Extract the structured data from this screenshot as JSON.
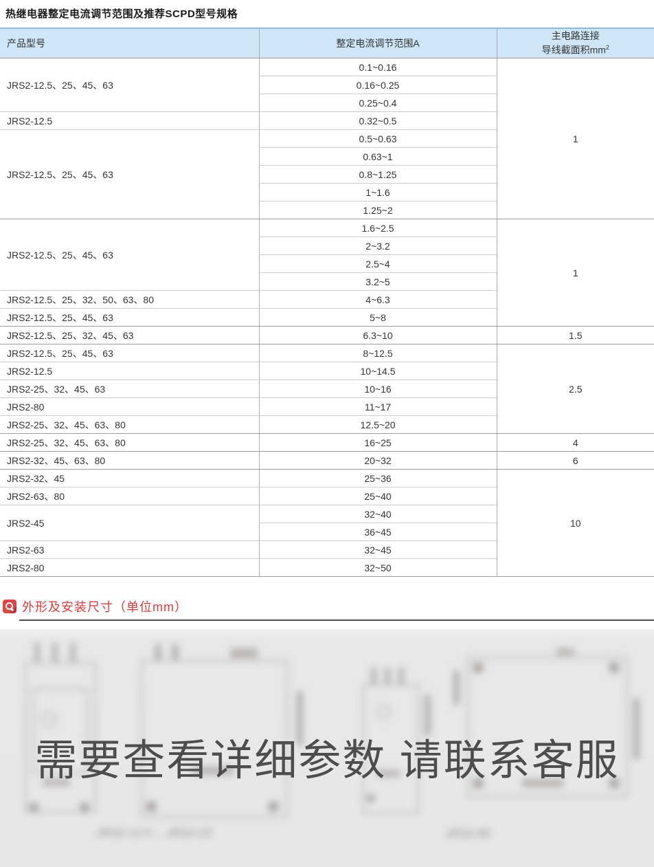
{
  "page": {
    "title": "热继电器整定电流调节范围及推荐SCPD型号规格"
  },
  "table": {
    "col1_header": "产品型号",
    "col2_header": "整定电流调节范围A",
    "col3_header_line1": "主电路连接",
    "col3_header_line2": "导线截面积mm",
    "col3_header_sup": "2",
    "rows": [
      {
        "range": "0.1~0.16",
        "model": "JRS2-12.5、25、45、63",
        "model_span": 3,
        "wire": "1",
        "wire_span": 9
      },
      {
        "range": "0.16~0.25"
      },
      {
        "range": "0.25~0.4"
      },
      {
        "range": "0.32~0.5",
        "model": "JRS2-12.5",
        "model_span": 1
      },
      {
        "range": "0.5~0.63",
        "model": "JRS2-12.5、25、45、63",
        "model_span": 5
      },
      {
        "range": "0.63~1"
      },
      {
        "range": "0.8~1.25"
      },
      {
        "range": "1~1.6"
      },
      {
        "range": "1.25~2",
        "group_end": true
      },
      {
        "range": "1.6~2.5",
        "model": "JRS2-12.5、25、45、63",
        "model_span": 4,
        "wire": "1",
        "wire_span": 6
      },
      {
        "range": "2~3.2"
      },
      {
        "range": "2.5~4"
      },
      {
        "range": "3.2~5"
      },
      {
        "range": "4~6.3",
        "model": "JRS2-12.5、25、32、50、63、80",
        "model_span": 1
      },
      {
        "range": "5~8",
        "model": "JRS2-12.5、25、45、63",
        "model_span": 1,
        "group_end": true
      },
      {
        "range": "6.3~10",
        "model": "JRS2-12.5、25、32、45、63",
        "model_span": 1,
        "wire": "1.5",
        "wire_span": 1,
        "group_end": true
      },
      {
        "range": "8~12.5",
        "model": "JRS2-12.5、25、45、63",
        "model_span": 1,
        "wire": "2.5",
        "wire_span": 5
      },
      {
        "range": "10~14.5",
        "model": "JRS2-12.5",
        "model_span": 1
      },
      {
        "range": "10~16",
        "model": "JRS2-25、32、45、63",
        "model_span": 1
      },
      {
        "range": "11~17",
        "model": "JRS2-80",
        "model_span": 1
      },
      {
        "range": "12.5~20",
        "model": "JRS2-25、32、45、63、80",
        "model_span": 1,
        "group_end": true
      },
      {
        "range": "16~25",
        "model": "JRS2-25、32、45、63、80",
        "model_span": 1,
        "wire": "4",
        "wire_span": 1,
        "group_end": true
      },
      {
        "range": "20~32",
        "model": "JRS2-32、45、63、80",
        "model_span": 1,
        "wire": "6",
        "wire_span": 1,
        "group_end": true
      },
      {
        "range": "25~36",
        "model": "JRS2-32、45",
        "model_span": 1,
        "wire": "10",
        "wire_span": 6
      },
      {
        "range": "25~40",
        "model": "JRS2-63、80",
        "model_span": 1
      },
      {
        "range": "32~40",
        "model": "JRS2-45",
        "model_span": 2
      },
      {
        "range": "36~45"
      },
      {
        "range": "32~45",
        "model": "JRS2-63",
        "model_span": 1
      },
      {
        "range": "32~50",
        "model": "JRS2-80",
        "model_span": 1,
        "group_end": true
      }
    ]
  },
  "section": {
    "title": "外形及安装尺寸（单位mm）",
    "icon": "magnifier-icon"
  },
  "drawing": {
    "watermark": "需要查看详细参数 请联系客服"
  }
}
